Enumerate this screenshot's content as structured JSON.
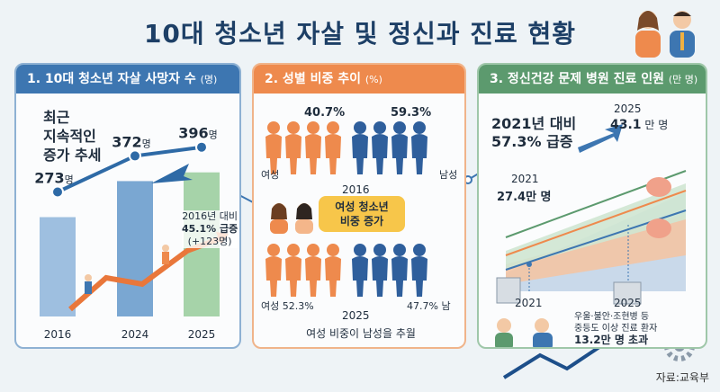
{
  "title": "10대 청소년 자살 및 정신과 진료 현황",
  "panel1": {
    "header": "1. 10대 청소년 자살 사망자 수",
    "unit": "(명)",
    "trend_text": "최근\n지속적인\n증가 추세",
    "bars": [
      {
        "year": "2016",
        "value": 273,
        "label": "273",
        "unit": "명"
      },
      {
        "year": "2024",
        "value": 372,
        "label": "372",
        "unit": "명"
      },
      {
        "year": "2025",
        "value": 396,
        "label": "396",
        "unit": "명"
      }
    ],
    "change_line1": "2016년 대비",
    "change_line2": "45.1% 급증",
    "change_line3": "(+123명)"
  },
  "panel2": {
    "header": "2. 성별 비중 추이",
    "unit": "(%)",
    "y2016": {
      "label": "2016",
      "female_pct": "40.7%",
      "male_pct": "59.3%",
      "female_label": "여성",
      "male_label": "남성"
    },
    "callout": "여성 청소년\n비중 증가",
    "y2025": {
      "label": "2025",
      "female_pct": "여성 52.3%",
      "male_pct": "47.7% 남"
    },
    "footer": "여성 비중이 남성을 추월"
  },
  "panel3": {
    "header": "3. 정신건강 문제 병원 진료 인원",
    "unit": "(만 명)",
    "headline": "2021년 대비\n57.3% 급증",
    "start": {
      "year": "2021",
      "value": "27.4만 명"
    },
    "end": {
      "year": "2025",
      "value": "43.1",
      "unit": "만 명"
    },
    "axis_start": "2021",
    "axis_end": "2025",
    "note_line1": "우울·불안·조현병 등",
    "note_line2": "중등도 이상 진료 환자",
    "note_line3": "13.2만 명 초과"
  },
  "source": "자료:교육부",
  "colors": {
    "blue": "#3d76b1",
    "orange": "#ee8a4d",
    "green": "#5c9a6e",
    "navy": "#1d3f66"
  }
}
